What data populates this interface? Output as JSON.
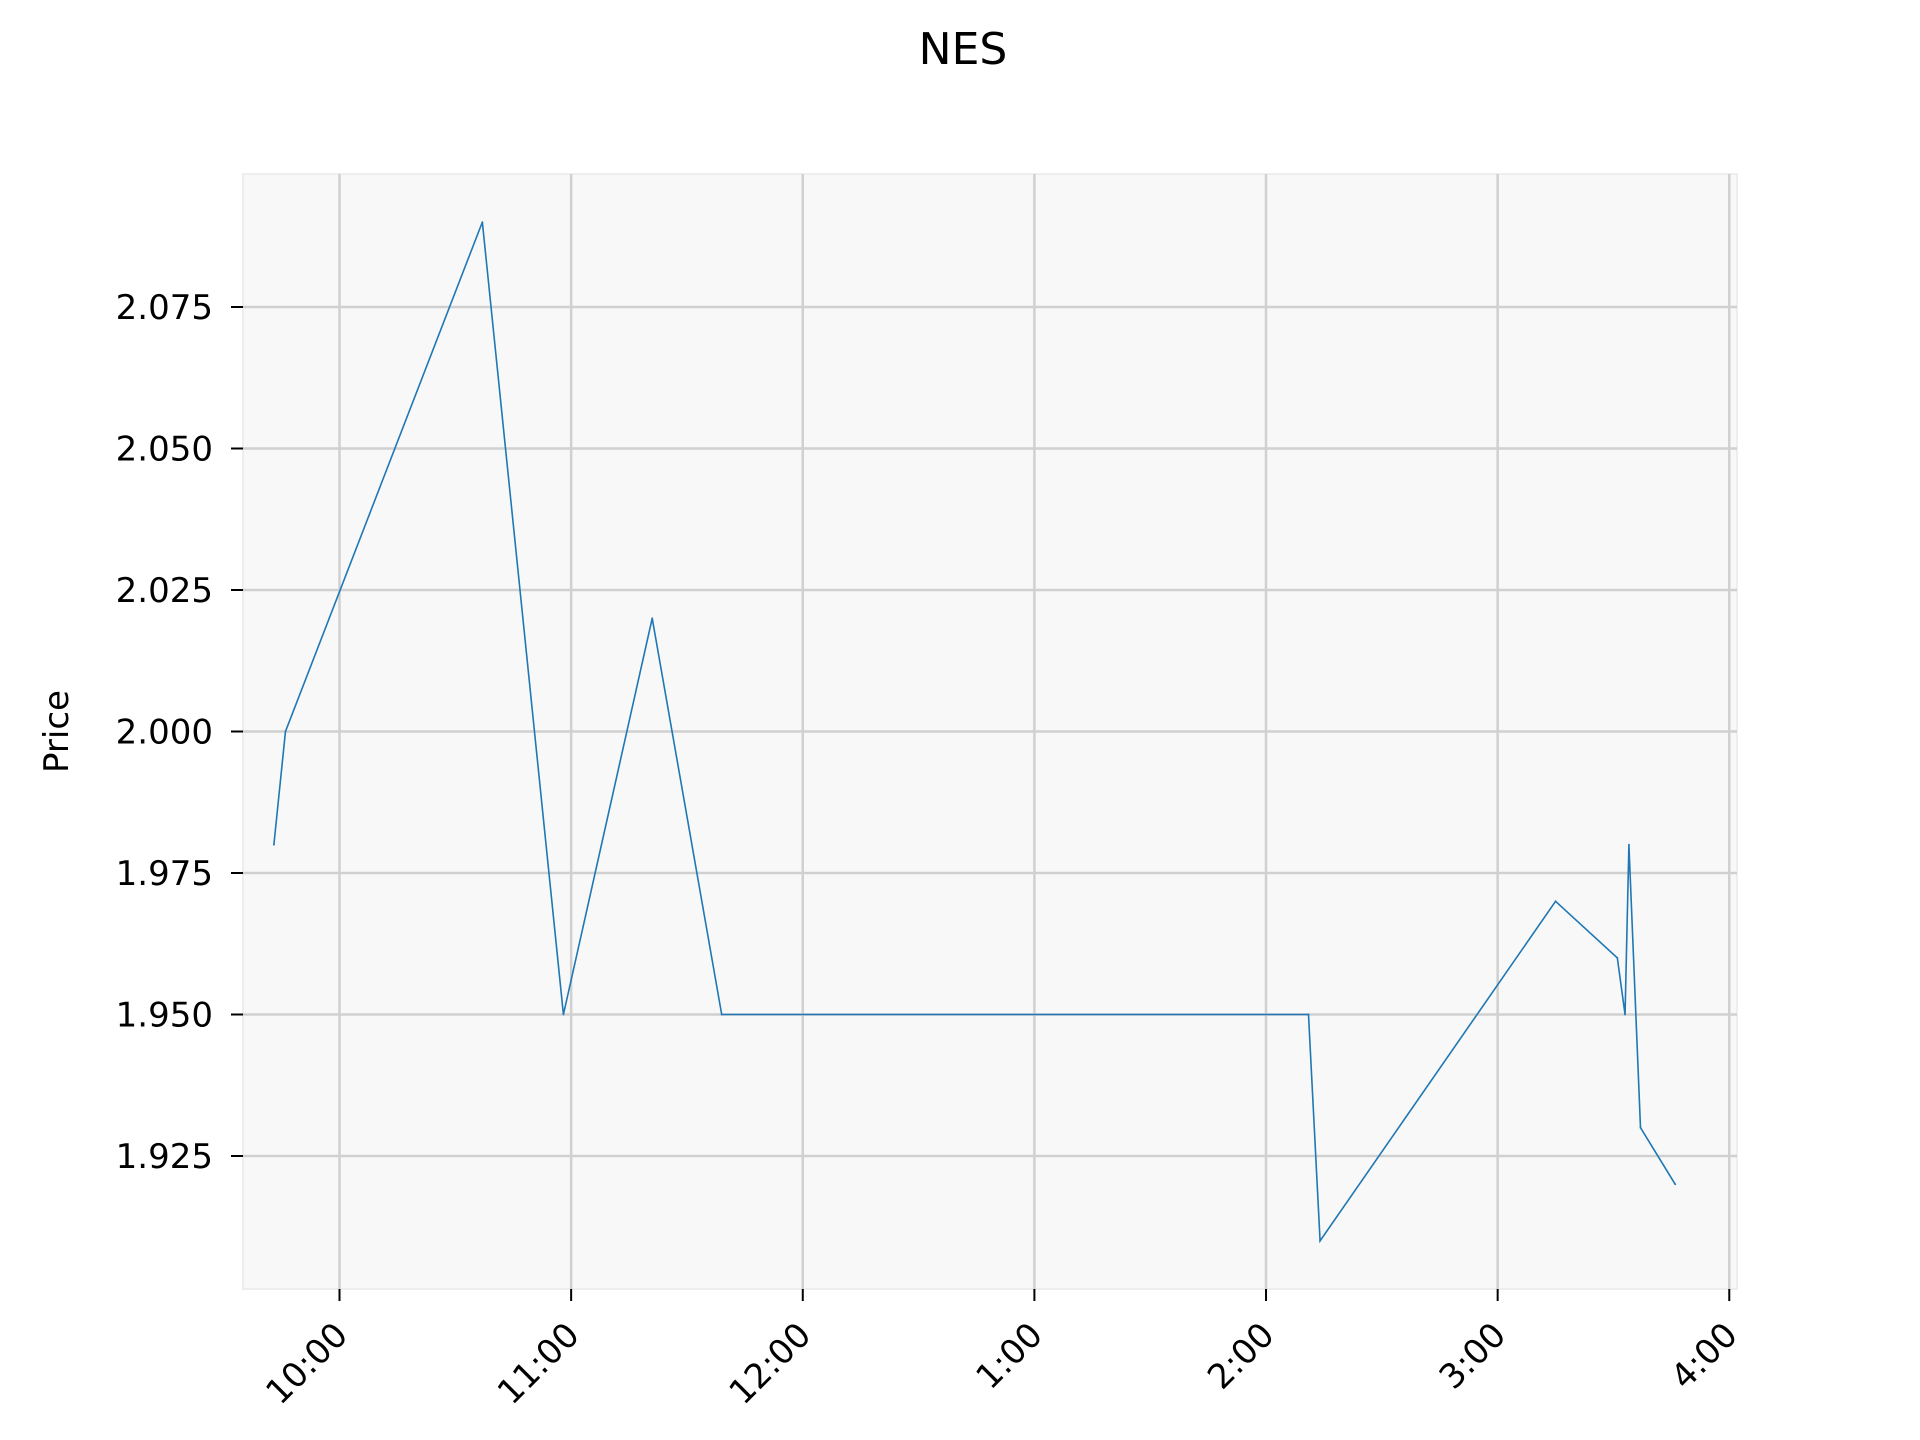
{
  "chart_data": {
    "type": "line",
    "title": "NES",
    "xlabel": "",
    "ylabel": "Price",
    "x_unit": "time of day",
    "x_ticks": [
      "10:00",
      "11:00",
      "12:00",
      "1:00",
      "2:00",
      "3:00",
      "4:00"
    ],
    "y_ticks": [
      "1.925",
      "1.950",
      "1.975",
      "2.000",
      "2.025",
      "2.050",
      "2.075"
    ],
    "xlim": [
      "9:35",
      "4:02"
    ],
    "ylim": [
      1.9015,
      2.0985
    ],
    "grid": true,
    "legend": "none",
    "series": [
      {
        "color": "#1f77b4",
        "x": [
          "9:43",
          "9:46",
          "10:37",
          "10:58",
          "11:21",
          "11:39",
          "2:11",
          "2:14",
          "3:15",
          "3:31",
          "3:33",
          "3:34",
          "3:37",
          "3:46"
        ],
        "y": [
          1.98,
          2.0,
          2.09,
          1.95,
          2.02,
          1.95,
          1.95,
          1.91,
          1.97,
          1.96,
          1.95,
          1.98,
          1.93,
          1.92
        ]
      }
    ]
  },
  "colors": {
    "plot_background": "#f8f8f8",
    "grid": "#d0d0d0",
    "line": "#1f77b4",
    "spine": "#eeeeee"
  }
}
